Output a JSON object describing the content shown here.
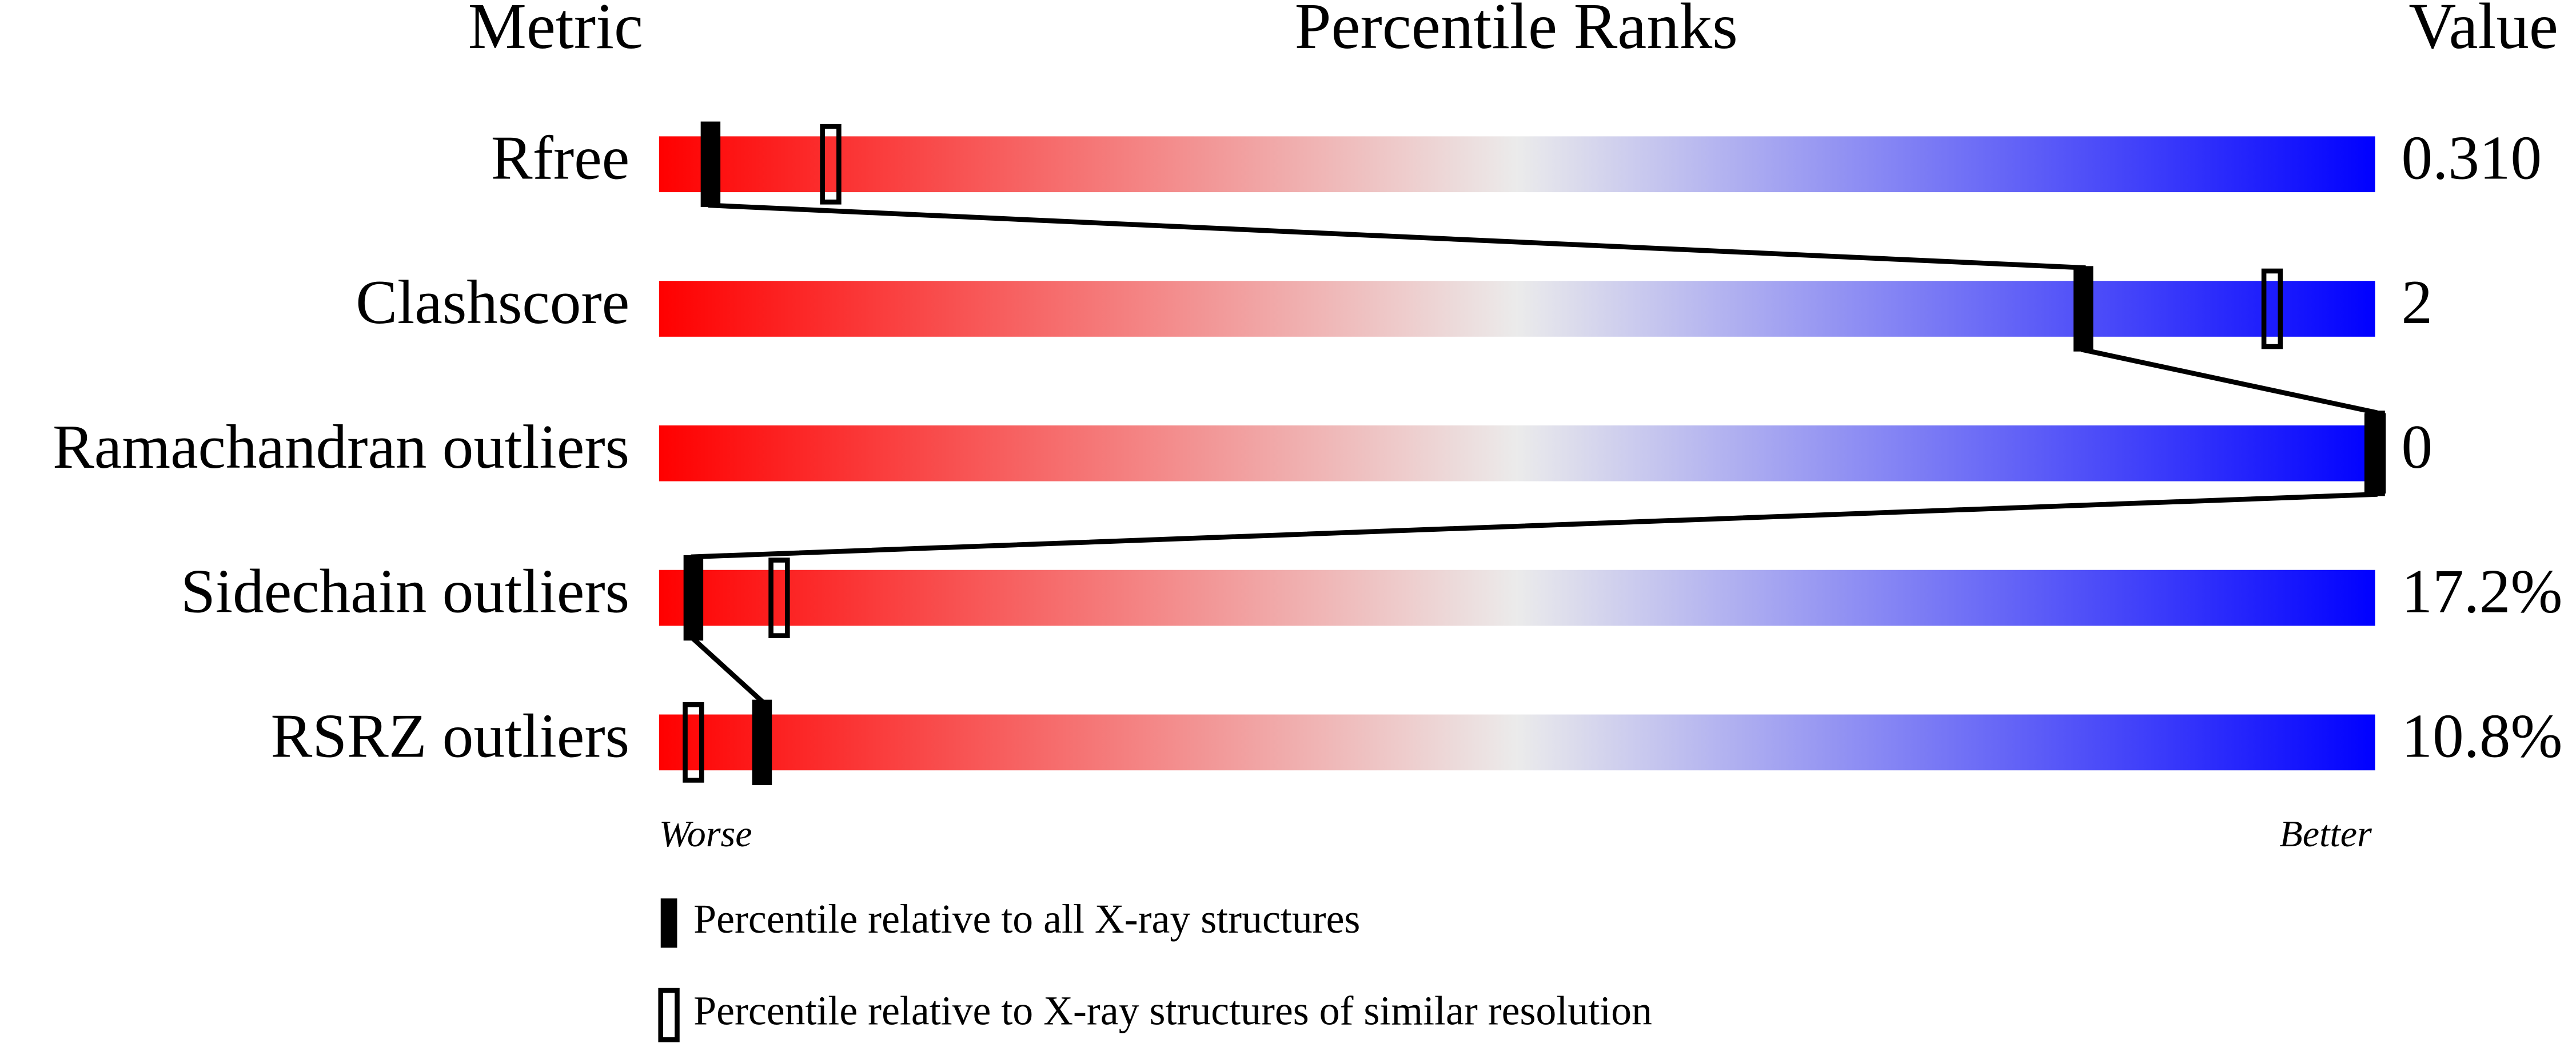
{
  "chart_data": {
    "type": "percentile",
    "headers": [
      "Metric",
      "Percentile Ranks",
      "Value"
    ],
    "categories": [
      "Rfree",
      "Clashscore",
      "Ramachandran outliers",
      "Sidechain outliers",
      "RSRZ outliers"
    ],
    "metric_values": [
      "0.310",
      "2",
      "0",
      "17.2%",
      "10.8%"
    ],
    "xlim": [
      0,
      100
    ],
    "x_end_labels": [
      "Worse",
      "Better"
    ],
    "gradient": [
      "#ff0000",
      "#ebebeb",
      "#0000ff"
    ],
    "series": [
      {
        "name": "Percentile relative to all X-ray structures",
        "color": "#000000",
        "marker": "filled",
        "connect": true,
        "values": [
          3,
          83,
          100,
          2,
          6
        ]
      },
      {
        "name": "Percentile relative to X-ray structures of similar resolution",
        "color": "#000000",
        "marker": "hollow",
        "connect": false,
        "values": [
          10,
          94,
          100,
          7,
          2
        ]
      }
    ]
  }
}
